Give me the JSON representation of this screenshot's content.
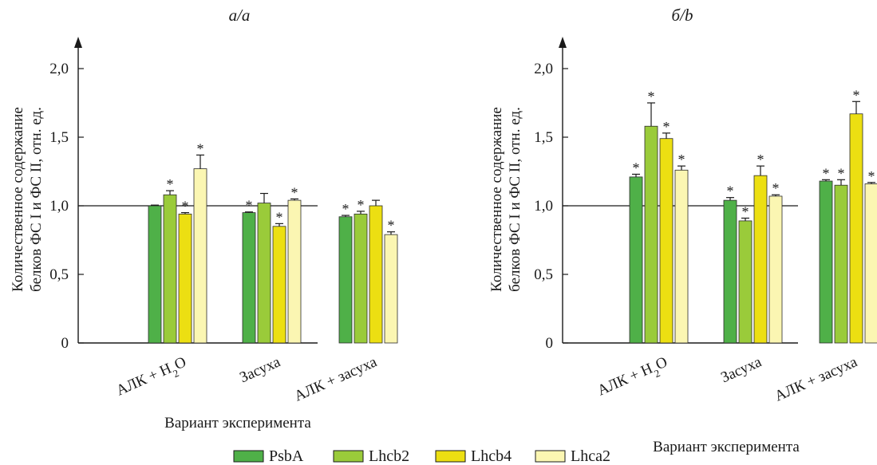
{
  "legend": [
    "PsbA",
    "Lhcb2",
    "Lhcb4",
    "Lhca2"
  ],
  "colors": {
    "PsbA": "#4fb048",
    "Lhcb2": "#9acb3a",
    "Lhcb4": "#ecdf12",
    "Lhca2": "#fbf6b2"
  },
  "chart_data": [
    {
      "type": "bar",
      "panel_label": "а/a",
      "categories": [
        "АЛК + H2O",
        "Засуха",
        "АЛК + засуха"
      ],
      "series": [
        {
          "name": "PsbA",
          "values": [
            1.0,
            0.95,
            0.92
          ],
          "errors": [
            0.005,
            0.005,
            0.01
          ],
          "significant": [
            false,
            true,
            true
          ]
        },
        {
          "name": "Lhcb2",
          "values": [
            1.08,
            1.02,
            0.94
          ],
          "errors": [
            0.03,
            0.07,
            0.02
          ],
          "significant": [
            true,
            false,
            true
          ]
        },
        {
          "name": "Lhcb4",
          "values": [
            0.94,
            0.85,
            1.0
          ],
          "errors": [
            0.01,
            0.02,
            0.04
          ],
          "significant": [
            true,
            true,
            false
          ]
        },
        {
          "name": "Lhca2",
          "values": [
            1.27,
            1.04,
            0.79
          ],
          "errors": [
            0.1,
            0.01,
            0.02
          ],
          "significant": [
            true,
            true,
            true
          ]
        }
      ],
      "reference_line": 1.0,
      "ylim": [
        0,
        2.0
      ],
      "yticks": [
        "0",
        "0,5",
        "1,0",
        "1,5",
        "2,0"
      ],
      "ylabel": [
        "Количественное содержание",
        "белков ФС I и ФС II, отн. ед."
      ],
      "xlabel": "Вариант эксперимента",
      "grid": false
    },
    {
      "type": "bar",
      "panel_label": "б/b",
      "categories": [
        "АЛК + H2O",
        "Засуха",
        "АЛК + засуха"
      ],
      "series": [
        {
          "name": "PsbA",
          "values": [
            1.21,
            1.04,
            1.18
          ],
          "errors": [
            0.02,
            0.02,
            0.01
          ],
          "significant": [
            true,
            true,
            true
          ]
        },
        {
          "name": "Lhcb2",
          "values": [
            1.58,
            0.89,
            1.15
          ],
          "errors": [
            0.17,
            0.02,
            0.04
          ],
          "significant": [
            true,
            true,
            true
          ]
        },
        {
          "name": "Lhcb4",
          "values": [
            1.49,
            1.22,
            1.67
          ],
          "errors": [
            0.04,
            0.07,
            0.09
          ],
          "significant": [
            true,
            true,
            true
          ]
        },
        {
          "name": "Lhca2",
          "values": [
            1.26,
            1.07,
            1.16
          ],
          "errors": [
            0.03,
            0.01,
            0.01
          ],
          "significant": [
            true,
            true,
            true
          ]
        }
      ],
      "reference_line": 1.0,
      "ylim": [
        0,
        2.0
      ],
      "yticks": [
        "0",
        "0,5",
        "1,0",
        "1,5",
        "2,0"
      ],
      "ylabel": [
        "Количественное содержание",
        "белков ФС I и ФС II, отн. ед."
      ],
      "xlabel": "Вариант эксперимента",
      "grid": false
    }
  ]
}
